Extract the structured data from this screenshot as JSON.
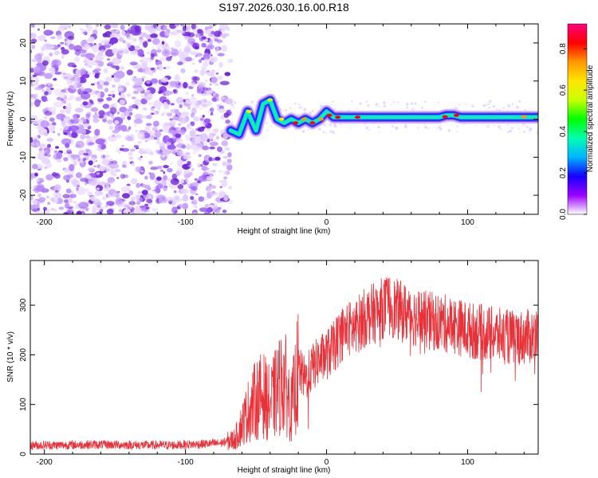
{
  "title": "S197.2026.030.16.00.R18",
  "colors": {
    "signal": "#e8323a",
    "noise": "#8b3cf0",
    "frame": "#000000"
  },
  "chart_data": [
    {
      "type": "heatmap",
      "name": "spectrogram",
      "xlabel": "Height of straight line (km)",
      "ylabel": "Frequency (Hz)",
      "xlim": [
        -210,
        150
      ],
      "ylim": [
        -25,
        25
      ],
      "xticks": [
        -200,
        -100,
        0,
        100
      ],
      "xtick_labels": [
        "-200",
        "-100",
        "0",
        "100"
      ],
      "yticks": [
        -20,
        -10,
        0,
        10,
        20
      ],
      "ytick_labels": [
        "-20",
        "-10",
        "0",
        "10",
        "20"
      ],
      "noise_region_x": [
        -210,
        -68
      ],
      "signal_track": {
        "x": [
          -68,
          -62,
          -56,
          -50,
          -45,
          -40,
          -35,
          -30,
          -25,
          -20,
          -15,
          -10,
          -5,
          0,
          5,
          20,
          40,
          60,
          80,
          85,
          90,
          95,
          100,
          120,
          150
        ],
        "frequency": [
          -3,
          -4,
          2,
          -3,
          4,
          5,
          0,
          -1,
          0,
          -1,
          0,
          -1,
          0,
          2,
          0.5,
          0.5,
          0.5,
          0.5,
          0.5,
          1,
          1,
          0.5,
          0.5,
          0.5,
          0.5
        ]
      }
    },
    {
      "type": "colorbar",
      "name": "amplitude-colorbar",
      "label": "Normalized spectral amplitude",
      "range": [
        0,
        0.92
      ],
      "ticks": [
        0.0,
        0.2,
        0.4,
        0.6,
        0.8
      ],
      "tick_labels": [
        "0.0",
        "0.2",
        "0.4",
        "0.6",
        "0.8"
      ],
      "stops": [
        "#ffffff",
        "#9900ff",
        "#1400ff",
        "#00b4ff",
        "#00ffb0",
        "#00ff00",
        "#c8ff00",
        "#ffe600",
        "#ff9900",
        "#ff0000",
        "#ff0080"
      ]
    },
    {
      "type": "line",
      "name": "snr-line",
      "xlabel": "Height of straight line (km)",
      "ylabel": "SNR (10 * v/v)",
      "xlim": [
        -210,
        150
      ],
      "ylim": [
        0,
        390
      ],
      "xticks": [
        -200,
        -100,
        0,
        100
      ],
      "xtick_labels": [
        "-200",
        "-100",
        "0",
        "100"
      ],
      "yticks": [
        0,
        100,
        200,
        300
      ],
      "ytick_labels": [
        "0",
        "100",
        "200",
        "300"
      ],
      "series": [
        {
          "name": "SNR",
          "x": [
            -210,
            -190,
            -170,
            -150,
            -130,
            -110,
            -90,
            -75,
            -65,
            -60,
            -55,
            -50,
            -45,
            -40,
            -35,
            -30,
            -25,
            -20,
            -15,
            -10,
            -5,
            0,
            5,
            10,
            15,
            20,
            25,
            30,
            35,
            40,
            45,
            50,
            55,
            60,
            70,
            80,
            90,
            100,
            110,
            120,
            130,
            140,
            150
          ],
          "y": [
            18,
            18,
            19,
            19,
            18,
            18,
            20,
            22,
            30,
            60,
            90,
            110,
            120,
            100,
            130,
            150,
            90,
            170,
            150,
            175,
            190,
            200,
            215,
            240,
            250,
            255,
            270,
            280,
            285,
            295,
            300,
            290,
            285,
            280,
            270,
            265,
            260,
            250,
            245,
            240,
            235,
            235,
            240
          ]
        }
      ]
    }
  ]
}
